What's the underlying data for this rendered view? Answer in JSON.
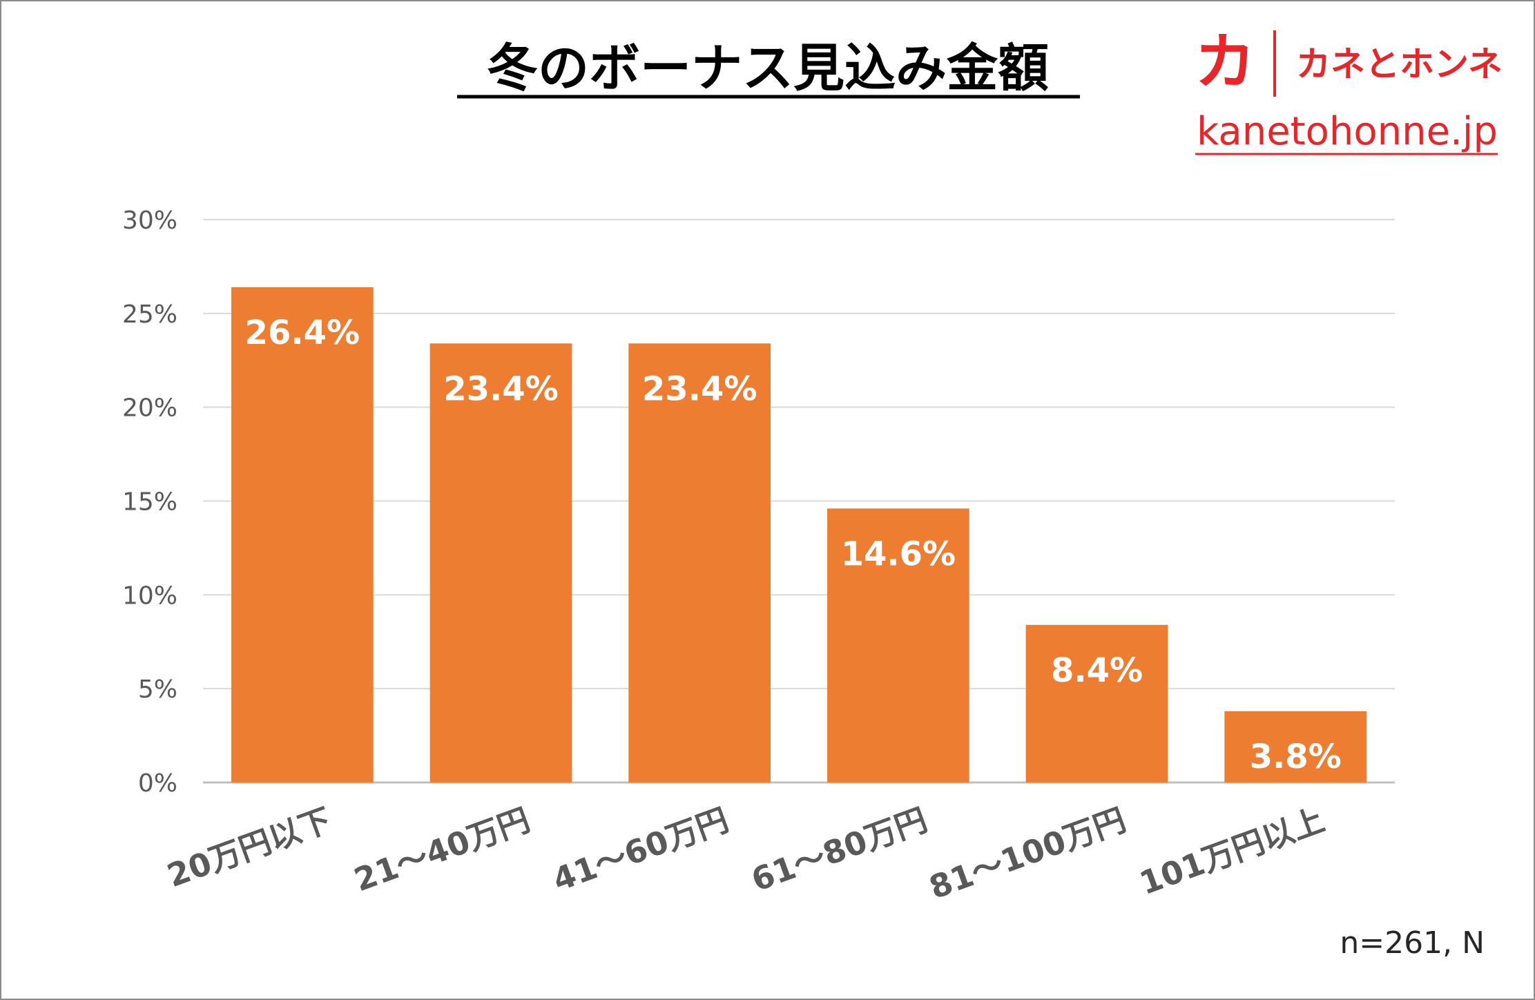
{
  "chart_data": {
    "type": "bar",
    "title": "冬のボーナス見込み金額",
    "categories": [
      "20万円以下",
      "21～40万円",
      "41～60万円",
      "61～80万円",
      "81～100万円",
      "101万円以上"
    ],
    "values": [
      26.4,
      23.4,
      23.4,
      14.6,
      8.4,
      3.8
    ],
    "data_labels": [
      "26.4%",
      "23.4%",
      "23.4%",
      "14.6%",
      "8.4%",
      "3.8%"
    ],
    "yticks": [
      "0%",
      "5%",
      "10%",
      "15%",
      "20%",
      "25%",
      "30%"
    ],
    "ylim": [
      0,
      30
    ],
    "grid": true,
    "legend": "none",
    "bar_color": "#ed7d31",
    "note": "n=261, N"
  },
  "brand": {
    "logo_glyph": "カ",
    "name": "カネとホンネ",
    "url": "kanetohonne.jp",
    "color": "#e8262a"
  }
}
